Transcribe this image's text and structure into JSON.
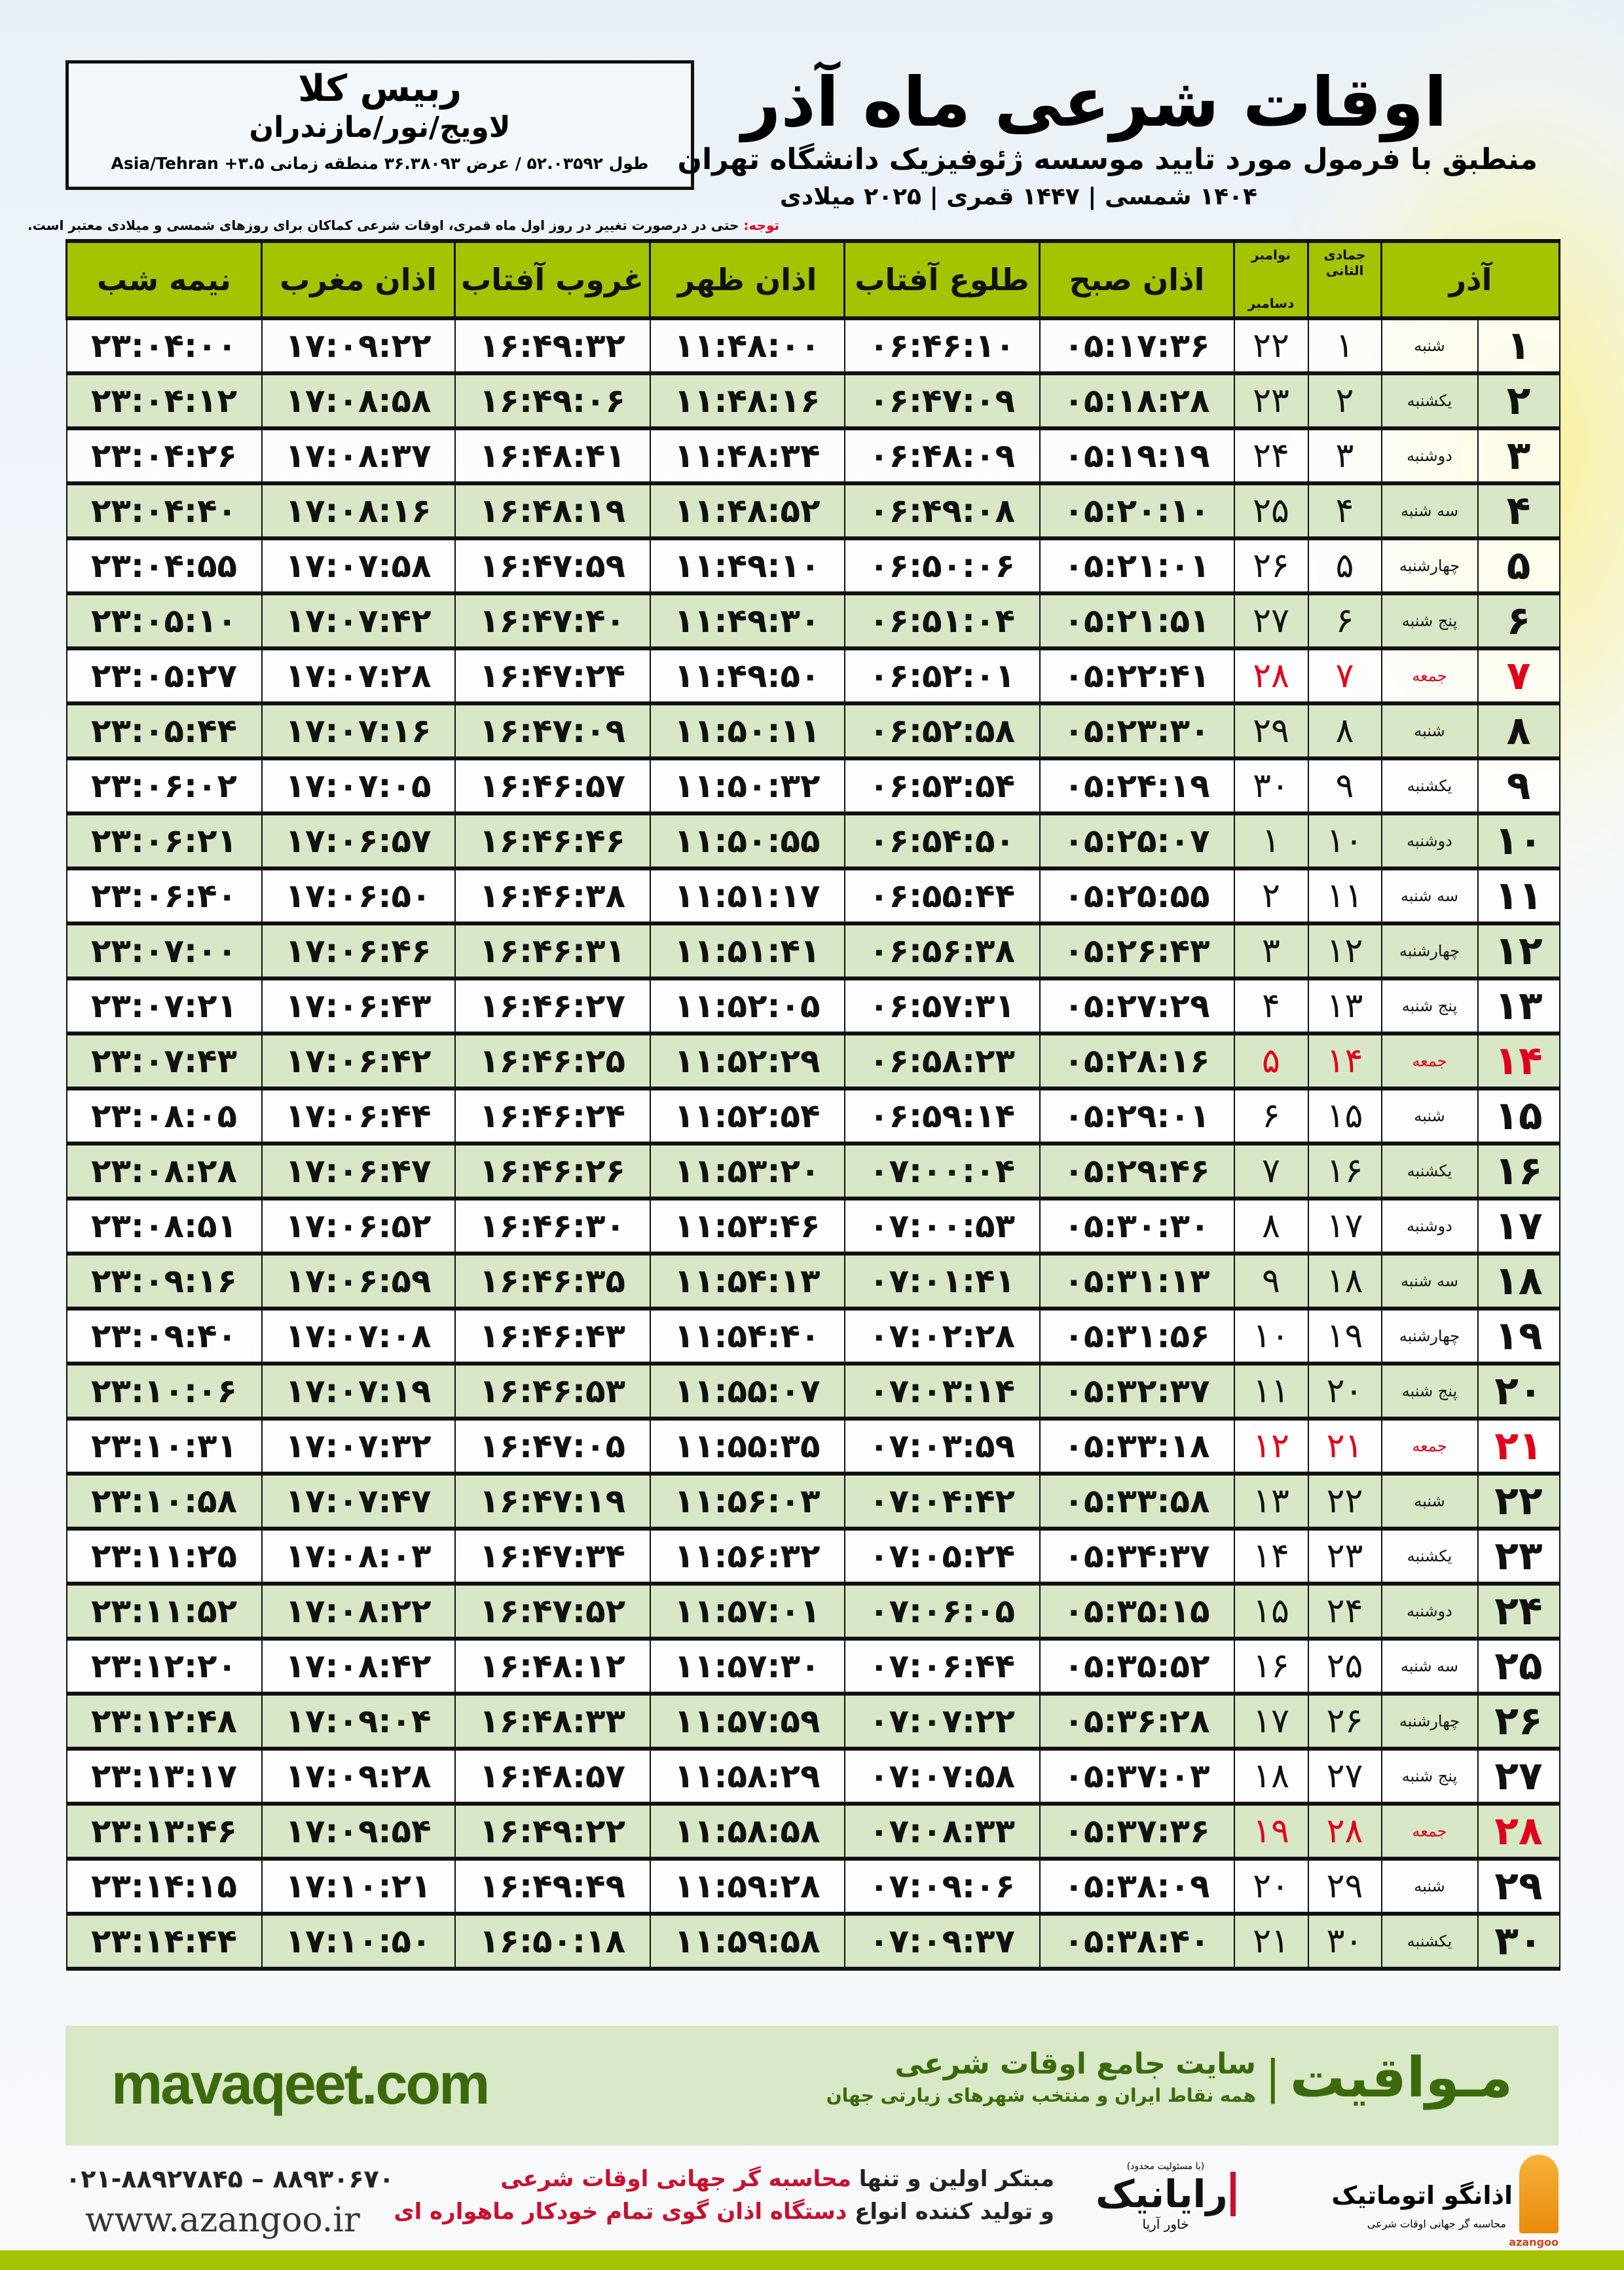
{
  "location": {
    "name": "ربیس کلا",
    "region": "لاویج/نور/مازندران",
    "coords": "طول ۵۲.۰۳۵۹۲ / عرض ۳۶.۳۸۰۹۳ منطقه زمانی ۳.۵+ Asia/Tehran"
  },
  "header": {
    "title": "اوقات شرعی ماه آذر",
    "subtitle": "منطبق با فرمول مورد تایید موسسه ژئوفیزیک دانشگاه تهران",
    "dateline": "۱۴۰۴ شمسی | ۱۴۴۷ قمری | ۲۰۲۵ میلادی",
    "note_label": "توجه:",
    "note_text": " حتی در درصورت تغییر در روز اول ماه قمری، اوقات شرعی کماکان برای روزهای شمسی و میلادی معتبر است."
  },
  "table": {
    "columns": {
      "azar": "آذر",
      "qamari": "جمادی الثانی",
      "miladi_top": "نوامبر",
      "miladi_bottom": "دسامبر",
      "sobh": "اذان صبح",
      "tolu": "طلوع آفتاب",
      "zohr": "اذان ظهر",
      "ghorub": "غروب آفتاب",
      "maghreb": "اذان مغرب",
      "nime": "نیمه شب"
    },
    "holiday_color": "#e0001b",
    "header_color": "#a4c400",
    "alt_row_color": "#d8e7c6",
    "rows": [
      {
        "azar": "۱",
        "weekday": "شنبه",
        "qamari": "۱",
        "miladi": "۲۲",
        "sobh": "۰۵:۱۷:۳۶",
        "tolu": "۰۶:۴۶:۱۰",
        "zohr": "۱۱:۴۸:۰۰",
        "ghorub": "۱۶:۴۹:۳۲",
        "maghreb": "۱۷:۰۹:۲۲",
        "nime": "۲۳:۰۴:۰۰",
        "holiday": false
      },
      {
        "azar": "۲",
        "weekday": "یکشنبه",
        "qamari": "۲",
        "miladi": "۲۳",
        "sobh": "۰۵:۱۸:۲۸",
        "tolu": "۰۶:۴۷:۰۹",
        "zohr": "۱۱:۴۸:۱۶",
        "ghorub": "۱۶:۴۹:۰۶",
        "maghreb": "۱۷:۰۸:۵۸",
        "nime": "۲۳:۰۴:۱۲",
        "holiday": false
      },
      {
        "azar": "۳",
        "weekday": "دوشنبه",
        "qamari": "۳",
        "miladi": "۲۴",
        "sobh": "۰۵:۱۹:۱۹",
        "tolu": "۰۶:۴۸:۰۹",
        "zohr": "۱۱:۴۸:۳۴",
        "ghorub": "۱۶:۴۸:۴۱",
        "maghreb": "۱۷:۰۸:۳۷",
        "nime": "۲۳:۰۴:۲۶",
        "holiday": false
      },
      {
        "azar": "۴",
        "weekday": "سه شنبه",
        "qamari": "۴",
        "miladi": "۲۵",
        "sobh": "۰۵:۲۰:۱۰",
        "tolu": "۰۶:۴۹:۰۸",
        "zohr": "۱۱:۴۸:۵۲",
        "ghorub": "۱۶:۴۸:۱۹",
        "maghreb": "۱۷:۰۸:۱۶",
        "nime": "۲۳:۰۴:۴۰",
        "holiday": false
      },
      {
        "azar": "۵",
        "weekday": "چهارشنبه",
        "qamari": "۵",
        "miladi": "۲۶",
        "sobh": "۰۵:۲۱:۰۱",
        "tolu": "۰۶:۵۰:۰۶",
        "zohr": "۱۱:۴۹:۱۰",
        "ghorub": "۱۶:۴۷:۵۹",
        "maghreb": "۱۷:۰۷:۵۸",
        "nime": "۲۳:۰۴:۵۵",
        "holiday": false
      },
      {
        "azar": "۶",
        "weekday": "پنج شنبه",
        "qamari": "۶",
        "miladi": "۲۷",
        "sobh": "۰۵:۲۱:۵۱",
        "tolu": "۰۶:۵۱:۰۴",
        "zohr": "۱۱:۴۹:۳۰",
        "ghorub": "۱۶:۴۷:۴۰",
        "maghreb": "۱۷:۰۷:۴۲",
        "nime": "۲۳:۰۵:۱۰",
        "holiday": false
      },
      {
        "azar": "۷",
        "weekday": "جمعه",
        "qamari": "۷",
        "miladi": "۲۸",
        "sobh": "۰۵:۲۲:۴۱",
        "tolu": "۰۶:۵۲:۰۱",
        "zohr": "۱۱:۴۹:۵۰",
        "ghorub": "۱۶:۴۷:۲۴",
        "maghreb": "۱۷:۰۷:۲۸",
        "nime": "۲۳:۰۵:۲۷",
        "holiday": true
      },
      {
        "azar": "۸",
        "weekday": "شنبه",
        "qamari": "۸",
        "miladi": "۲۹",
        "sobh": "۰۵:۲۳:۳۰",
        "tolu": "۰۶:۵۲:۵۸",
        "zohr": "۱۱:۵۰:۱۱",
        "ghorub": "۱۶:۴۷:۰۹",
        "maghreb": "۱۷:۰۷:۱۶",
        "nime": "۲۳:۰۵:۴۴",
        "holiday": false
      },
      {
        "azar": "۹",
        "weekday": "یکشنبه",
        "qamari": "۹",
        "miladi": "۳۰",
        "sobh": "۰۵:۲۴:۱۹",
        "tolu": "۰۶:۵۳:۵۴",
        "zohr": "۱۱:۵۰:۳۲",
        "ghorub": "۱۶:۴۶:۵۷",
        "maghreb": "۱۷:۰۷:۰۵",
        "nime": "۲۳:۰۶:۰۲",
        "holiday": false
      },
      {
        "azar": "۱۰",
        "weekday": "دوشنبه",
        "qamari": "۱۰",
        "miladi": "۱",
        "sobh": "۰۵:۲۵:۰۷",
        "tolu": "۰۶:۵۴:۵۰",
        "zohr": "۱۱:۵۰:۵۵",
        "ghorub": "۱۶:۴۶:۴۶",
        "maghreb": "۱۷:۰۶:۵۷",
        "nime": "۲۳:۰۶:۲۱",
        "holiday": false
      },
      {
        "azar": "۱۱",
        "weekday": "سه شنبه",
        "qamari": "۱۱",
        "miladi": "۲",
        "sobh": "۰۵:۲۵:۵۵",
        "tolu": "۰۶:۵۵:۴۴",
        "zohr": "۱۱:۵۱:۱۷",
        "ghorub": "۱۶:۴۶:۳۸",
        "maghreb": "۱۷:۰۶:۵۰",
        "nime": "۲۳:۰۶:۴۰",
        "holiday": false
      },
      {
        "azar": "۱۲",
        "weekday": "چهارشنبه",
        "qamari": "۱۲",
        "miladi": "۳",
        "sobh": "۰۵:۲۶:۴۳",
        "tolu": "۰۶:۵۶:۳۸",
        "zohr": "۱۱:۵۱:۴۱",
        "ghorub": "۱۶:۴۶:۳۱",
        "maghreb": "۱۷:۰۶:۴۶",
        "nime": "۲۳:۰۷:۰۰",
        "holiday": false
      },
      {
        "azar": "۱۳",
        "weekday": "پنج شنبه",
        "qamari": "۱۳",
        "miladi": "۴",
        "sobh": "۰۵:۲۷:۲۹",
        "tolu": "۰۶:۵۷:۳۱",
        "zohr": "۱۱:۵۲:۰۵",
        "ghorub": "۱۶:۴۶:۲۷",
        "maghreb": "۱۷:۰۶:۴۳",
        "nime": "۲۳:۰۷:۲۱",
        "holiday": false
      },
      {
        "azar": "۱۴",
        "weekday": "جمعه",
        "qamari": "۱۴",
        "miladi": "۵",
        "sobh": "۰۵:۲۸:۱۶",
        "tolu": "۰۶:۵۸:۲۳",
        "zohr": "۱۱:۵۲:۲۹",
        "ghorub": "۱۶:۴۶:۲۵",
        "maghreb": "۱۷:۰۶:۴۲",
        "nime": "۲۳:۰۷:۴۳",
        "holiday": true
      },
      {
        "azar": "۱۵",
        "weekday": "شنبه",
        "qamari": "۱۵",
        "miladi": "۶",
        "sobh": "۰۵:۲۹:۰۱",
        "tolu": "۰۶:۵۹:۱۴",
        "zohr": "۱۱:۵۲:۵۴",
        "ghorub": "۱۶:۴۶:۲۴",
        "maghreb": "۱۷:۰۶:۴۴",
        "nime": "۲۳:۰۸:۰۵",
        "holiday": false
      },
      {
        "azar": "۱۶",
        "weekday": "یکشنبه",
        "qamari": "۱۶",
        "miladi": "۷",
        "sobh": "۰۵:۲۹:۴۶",
        "tolu": "۰۷:۰۰:۰۴",
        "zohr": "۱۱:۵۳:۲۰",
        "ghorub": "۱۶:۴۶:۲۶",
        "maghreb": "۱۷:۰۶:۴۷",
        "nime": "۲۳:۰۸:۲۸",
        "holiday": false
      },
      {
        "azar": "۱۷",
        "weekday": "دوشنبه",
        "qamari": "۱۷",
        "miladi": "۸",
        "sobh": "۰۵:۳۰:۳۰",
        "tolu": "۰۷:۰۰:۵۳",
        "zohr": "۱۱:۵۳:۴۶",
        "ghorub": "۱۶:۴۶:۳۰",
        "maghreb": "۱۷:۰۶:۵۲",
        "nime": "۲۳:۰۸:۵۱",
        "holiday": false
      },
      {
        "azar": "۱۸",
        "weekday": "سه شنبه",
        "qamari": "۱۸",
        "miladi": "۹",
        "sobh": "۰۵:۳۱:۱۳",
        "tolu": "۰۷:۰۱:۴۱",
        "zohr": "۱۱:۵۴:۱۳",
        "ghorub": "۱۶:۴۶:۳۵",
        "maghreb": "۱۷:۰۶:۵۹",
        "nime": "۲۳:۰۹:۱۶",
        "holiday": false
      },
      {
        "azar": "۱۹",
        "weekday": "چهارشنبه",
        "qamari": "۱۹",
        "miladi": "۱۰",
        "sobh": "۰۵:۳۱:۵۶",
        "tolu": "۰۷:۰۲:۲۸",
        "zohr": "۱۱:۵۴:۴۰",
        "ghorub": "۱۶:۴۶:۴۳",
        "maghreb": "۱۷:۰۷:۰۸",
        "nime": "۲۳:۰۹:۴۰",
        "holiday": false
      },
      {
        "azar": "۲۰",
        "weekday": "پنج شنبه",
        "qamari": "۲۰",
        "miladi": "۱۱",
        "sobh": "۰۵:۳۲:۳۷",
        "tolu": "۰۷:۰۳:۱۴",
        "zohr": "۱۱:۵۵:۰۷",
        "ghorub": "۱۶:۴۶:۵۳",
        "maghreb": "۱۷:۰۷:۱۹",
        "nime": "۲۳:۱۰:۰۶",
        "holiday": false
      },
      {
        "azar": "۲۱",
        "weekday": "جمعه",
        "qamari": "۲۱",
        "miladi": "۱۲",
        "sobh": "۰۵:۳۳:۱۸",
        "tolu": "۰۷:۰۳:۵۹",
        "zohr": "۱۱:۵۵:۳۵",
        "ghorub": "۱۶:۴۷:۰۵",
        "maghreb": "۱۷:۰۷:۳۲",
        "nime": "۲۳:۱۰:۳۱",
        "holiday": true
      },
      {
        "azar": "۲۲",
        "weekday": "شنبه",
        "qamari": "۲۲",
        "miladi": "۱۳",
        "sobh": "۰۵:۳۳:۵۸",
        "tolu": "۰۷:۰۴:۴۲",
        "zohr": "۱۱:۵۶:۰۳",
        "ghorub": "۱۶:۴۷:۱۹",
        "maghreb": "۱۷:۰۷:۴۷",
        "nime": "۲۳:۱۰:۵۸",
        "holiday": false
      },
      {
        "azar": "۲۳",
        "weekday": "یکشنبه",
        "qamari": "۲۳",
        "miladi": "۱۴",
        "sobh": "۰۵:۳۴:۳۷",
        "tolu": "۰۷:۰۵:۲۴",
        "zohr": "۱۱:۵۶:۳۲",
        "ghorub": "۱۶:۴۷:۳۴",
        "maghreb": "۱۷:۰۸:۰۳",
        "nime": "۲۳:۱۱:۲۵",
        "holiday": false
      },
      {
        "azar": "۲۴",
        "weekday": "دوشنبه",
        "qamari": "۲۴",
        "miladi": "۱۵",
        "sobh": "۰۵:۳۵:۱۵",
        "tolu": "۰۷:۰۶:۰۵",
        "zohr": "۱۱:۵۷:۰۱",
        "ghorub": "۱۶:۴۷:۵۲",
        "maghreb": "۱۷:۰۸:۲۲",
        "nime": "۲۳:۱۱:۵۲",
        "holiday": false
      },
      {
        "azar": "۲۵",
        "weekday": "سه شنبه",
        "qamari": "۲۵",
        "miladi": "۱۶",
        "sobh": "۰۵:۳۵:۵۲",
        "tolu": "۰۷:۰۶:۴۴",
        "zohr": "۱۱:۵۷:۳۰",
        "ghorub": "۱۶:۴۸:۱۲",
        "maghreb": "۱۷:۰۸:۴۲",
        "nime": "۲۳:۱۲:۲۰",
        "holiday": false
      },
      {
        "azar": "۲۶",
        "weekday": "چهارشنبه",
        "qamari": "۲۶",
        "miladi": "۱۷",
        "sobh": "۰۵:۳۶:۲۸",
        "tolu": "۰۷:۰۷:۲۲",
        "zohr": "۱۱:۵۷:۵۹",
        "ghorub": "۱۶:۴۸:۳۳",
        "maghreb": "۱۷:۰۹:۰۴",
        "nime": "۲۳:۱۲:۴۸",
        "holiday": false
      },
      {
        "azar": "۲۷",
        "weekday": "پنج شنبه",
        "qamari": "۲۷",
        "miladi": "۱۸",
        "sobh": "۰۵:۳۷:۰۳",
        "tolu": "۰۷:۰۷:۵۸",
        "zohr": "۱۱:۵۸:۲۹",
        "ghorub": "۱۶:۴۸:۵۷",
        "maghreb": "۱۷:۰۹:۲۸",
        "nime": "۲۳:۱۳:۱۷",
        "holiday": false
      },
      {
        "azar": "۲۸",
        "weekday": "جمعه",
        "qamari": "۲۸",
        "miladi": "۱۹",
        "sobh": "۰۵:۳۷:۳۶",
        "tolu": "۰۷:۰۸:۳۳",
        "zohr": "۱۱:۵۸:۵۸",
        "ghorub": "۱۶:۴۹:۲۲",
        "maghreb": "۱۷:۰۹:۵۴",
        "nime": "۲۳:۱۳:۴۶",
        "holiday": true
      },
      {
        "azar": "۲۹",
        "weekday": "شنبه",
        "qamari": "۲۹",
        "miladi": "۲۰",
        "sobh": "۰۵:۳۸:۰۹",
        "tolu": "۰۷:۰۹:۰۶",
        "zohr": "۱۱:۵۹:۲۸",
        "ghorub": "۱۶:۴۹:۴۹",
        "maghreb": "۱۷:۱۰:۲۱",
        "nime": "۲۳:۱۴:۱۵",
        "holiday": false
      },
      {
        "azar": "۳۰",
        "weekday": "یکشنبه",
        "qamari": "۳۰",
        "miladi": "۲۱",
        "sobh": "۰۵:۳۸:۴۰",
        "tolu": "۰۷:۰۹:۳۷",
        "zohr": "۱۱:۵۹:۵۸",
        "ghorub": "۱۶:۵۰:۱۸",
        "maghreb": "۱۷:۱۰:۵۰",
        "nime": "۲۳:۱۴:۴۴",
        "holiday": false
      }
    ]
  },
  "banner": {
    "brand": "مـواقیت",
    "brand_subtitle": "سایت جامع اوقات شرعی",
    "brand_tagline": "همه نقاط ایران و منتخب شهرهای زیارتی جهان",
    "site": "mavaqeet.com",
    "brand_color": "#3a6a0c"
  },
  "footer": {
    "phone": "۰۲۱-۸۸۹۲۷۸۴۵ – ۸۸۹۳۰۶۷۰",
    "website": "www.azangoo.ir",
    "promo_1a": "مبتکر اولین و تنها ",
    "promo_1b": "محاسبه گر جهانی اوقات شرعی",
    "promo_2a": "و تولید کننده انواع ",
    "promo_2b": "دستگاه اذان گوی تمام خودکار ماهواره ای",
    "rayanik_ltd": "(با مسئولیت محدود)",
    "rayanik_name": "رایانیک",
    "rayanik_sub": "خاور آریا",
    "azangoo_name": "اذانگو اتوماتیک",
    "azangoo_tag": "محاسبه گر جهانی اوقات شرعی",
    "azangoo_latin": "azangoo"
  }
}
